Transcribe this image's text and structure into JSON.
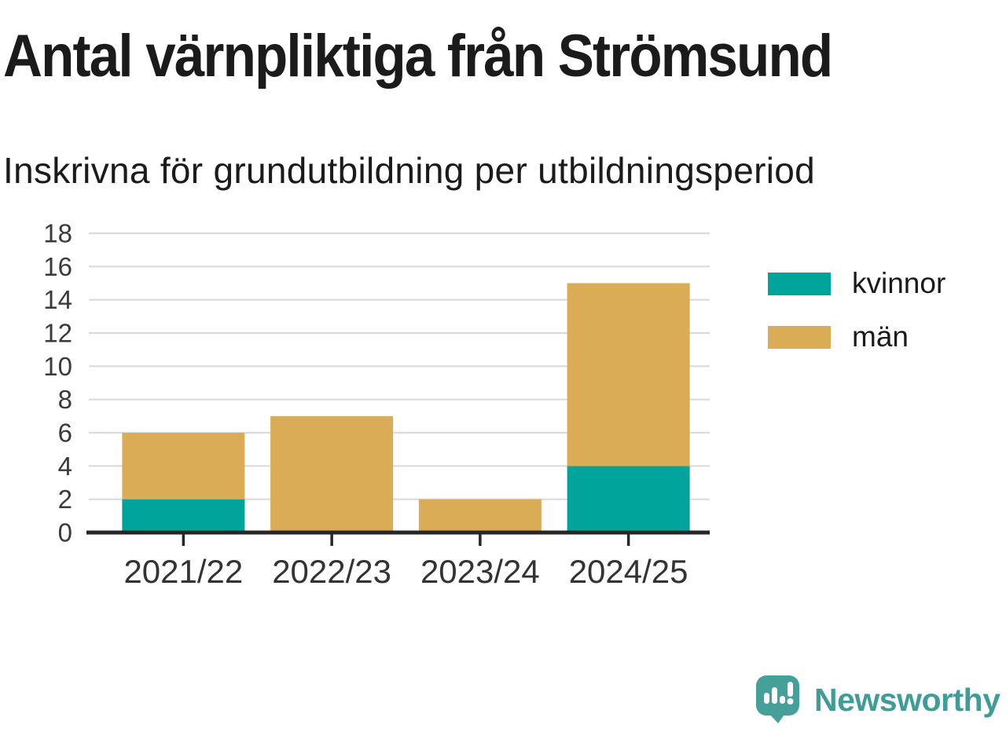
{
  "header": {
    "title": "Antal värnpliktiga från Strömsund",
    "subtitle": "Inskrivna för grundutbildning per utbildningsperiod"
  },
  "chart_data": {
    "type": "bar",
    "stacked": true,
    "title": "Antal värnpliktiga från Strömsund",
    "subtitle": "Inskrivna för grundutbildning per utbildningsperiod",
    "categories": [
      "2021/22",
      "2022/23",
      "2023/24",
      "2024/25"
    ],
    "series": [
      {
        "name": "kvinnor",
        "color": "#00A49B",
        "values": [
          2,
          0,
          0,
          4
        ]
      },
      {
        "name": "män",
        "color": "#D9AC55",
        "values": [
          4,
          7,
          2,
          11
        ]
      }
    ],
    "totals": [
      6,
      7,
      2,
      15
    ],
    "xlabel": "",
    "ylabel": "",
    "ylim": [
      0,
      18
    ],
    "ytick_step": 2,
    "yticks": [
      0,
      2,
      4,
      6,
      8,
      10,
      12,
      14,
      16,
      18
    ],
    "grid": true,
    "legend_position": "right-top"
  },
  "branding": {
    "logo_text": "Newsworthy",
    "logo_color": "#3E9D97",
    "logo_icon": "newsworthy-speech-bubble-bar-chart-icon"
  },
  "colors": {
    "kvinnor": "#00A49B",
    "man": "#D9AC55",
    "axis_line": "#262626",
    "gridline": "#DBDBDB",
    "heading_text": "#1B1B1B",
    "tick_label_text": "#333333",
    "background": "#FFFFFF"
  }
}
